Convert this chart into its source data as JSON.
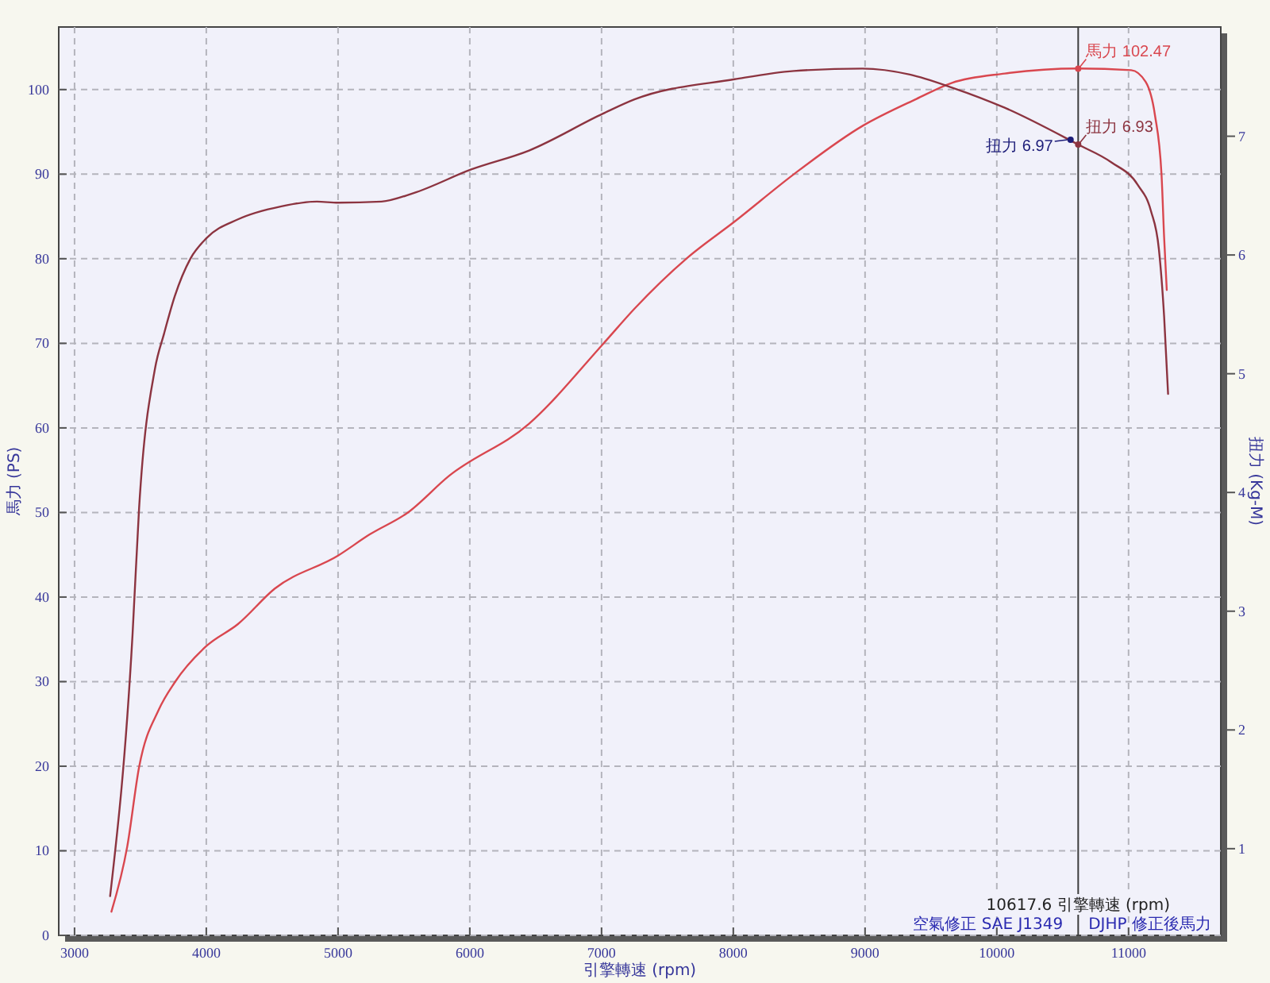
{
  "chart_data": {
    "type": "line",
    "xlabel": "引擎轉速 (rpm)",
    "ylabel": "馬力 (PS)",
    "y2label": "扭力 (Kg-M)",
    "xlim": [
      2880,
      11700
    ],
    "xticks": [
      3000,
      4000,
      5000,
      6000,
      7000,
      8000,
      9000,
      10000,
      11000
    ],
    "ylim": [
      0,
      107.4
    ],
    "yticks": [
      0,
      10,
      20,
      30,
      40,
      50,
      60,
      70,
      80,
      90,
      100
    ],
    "y2lim": [
      0.27,
      7.92
    ],
    "y2ticks": [
      1,
      2,
      3,
      4,
      5,
      6,
      7
    ],
    "grid": true,
    "series": [
      {
        "color": "#d9474f",
        "x": [
          3280,
          3400,
          3490,
          3640,
          3760,
          4000,
          4240,
          4520,
          5000,
          5240,
          5530,
          5840,
          6450,
          7010,
          7250,
          7650,
          8010,
          8460,
          8980,
          9390,
          9660,
          10060,
          10617.6,
          11020,
          11130,
          11200,
          11250,
          11270,
          11290
        ],
        "values": [
          2.8,
          10.5,
          19.9,
          26.7,
          29.9,
          34.2,
          36.8,
          41.0,
          44.9,
          47.4,
          50.0,
          54.3,
          60.5,
          69.9,
          74.1,
          80.1,
          84.4,
          90.0,
          95.7,
          98.9,
          100.8,
          101.9,
          102.5,
          102.3,
          100.9,
          97.0,
          90.0,
          82.5,
          76.3
        ]
      },
      {
        "axis": "y2",
        "color": "#8c3440",
        "x": [
          3270,
          3440,
          3490,
          3610,
          3680,
          3760,
          3880,
          4000,
          4240,
          4570,
          4840,
          5000,
          5330,
          5570,
          6010,
          6450,
          7010,
          7250,
          8010,
          8460,
          8980,
          9340,
          9660,
          10060,
          10617.6,
          10870,
          11070,
          11170,
          11230,
          11270,
          11300
        ],
        "values": [
          0.6,
          2.8,
          3.87,
          5.04,
          5.34,
          5.65,
          5.97,
          6.14,
          6.3,
          6.41,
          6.45,
          6.44,
          6.45,
          6.52,
          6.72,
          6.88,
          7.19,
          7.31,
          7.48,
          7.55,
          7.57,
          7.52,
          7.41,
          7.24,
          6.93,
          6.78,
          6.59,
          6.37,
          6.05,
          5.48,
          4.83
        ]
      },
      {
        "type": "scatter",
        "marker": "circle",
        "color": "#d9474f",
        "x": [
          10617.6
        ],
        "values": [
          102.47
        ],
        "value_labels": [
          "馬力 102.47"
        ]
      },
      {
        "type": "scatter",
        "marker": "circle",
        "axis": "y2",
        "colors": [
          "#8c3440",
          "#1c1c78"
        ],
        "x": [
          10617.6,
          10560
        ],
        "values": [
          6.93,
          6.97
        ],
        "value_labels": [
          "扭力 6.93",
          "扭力 6.97"
        ]
      }
    ],
    "ref_lines": [
      {
        "axis": "x",
        "value": 10617.6,
        "label": "10617.6 引擎轉速 (rpm)",
        "color": "#3c3c3c"
      }
    ],
    "annotations": [
      "空氣修正 SAE J1349",
      "DJHP 修正後馬力"
    ]
  }
}
